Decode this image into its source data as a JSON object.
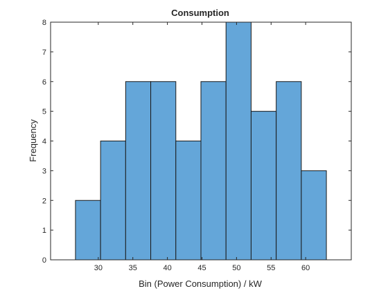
{
  "chart_data": {
    "type": "bar",
    "title": "Consumption",
    "xlabel": "Bin (Power Consumption) / kW",
    "ylabel": "Frequency",
    "bin_edges": [
      26.7,
      30.33,
      33.96,
      37.59,
      41.22,
      44.85,
      48.48,
      52.11,
      55.74,
      59.37,
      63.0
    ],
    "values": [
      2,
      4,
      6,
      6,
      4,
      6,
      8,
      5,
      6,
      3
    ],
    "xlim": [
      23.1,
      66.6
    ],
    "ylim": [
      0,
      8
    ],
    "xticks": [
      30,
      35,
      40,
      45,
      50,
      55,
      60
    ],
    "yticks": [
      0,
      1,
      2,
      3,
      4,
      5,
      6,
      7,
      8
    ],
    "bar_color": "#64a6d9",
    "edge_color": "#1a1a1a",
    "grid": false
  }
}
